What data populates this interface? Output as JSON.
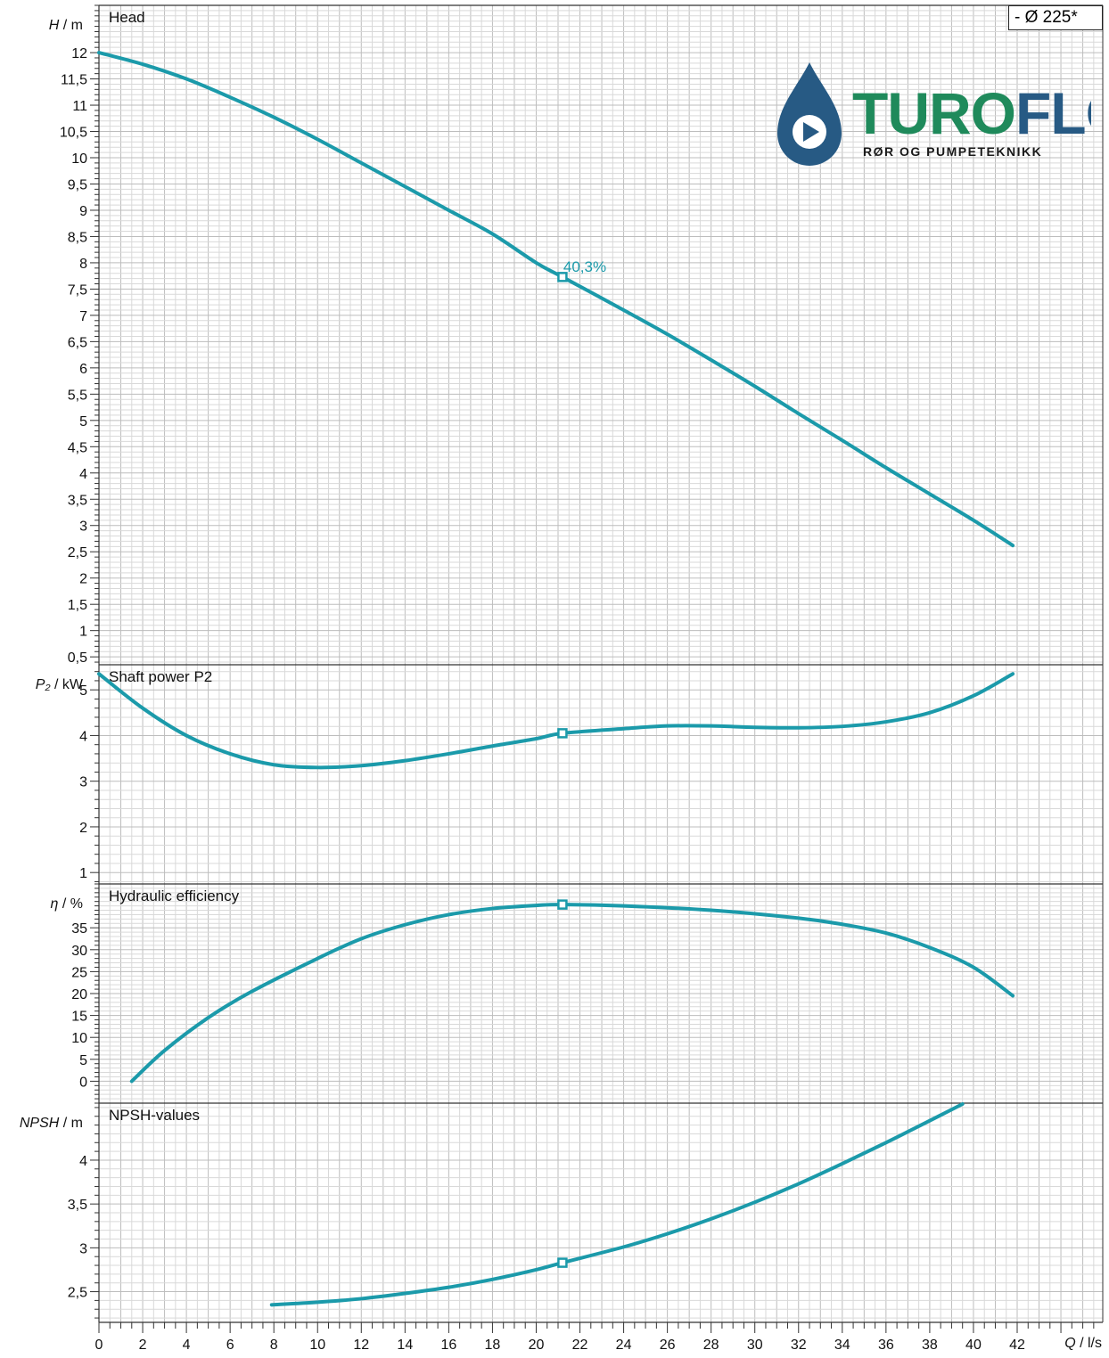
{
  "colors": {
    "curve": "#1b9aaa",
    "grid_minor": "#d9d9d9",
    "grid_major": "#bdbdbd",
    "axis": "#333333",
    "logo_drop": "#275a84",
    "logo_turo": "#1f8a5b",
    "logo_flow": "#275a84"
  },
  "legend": {
    "label": "- Ø 225*"
  },
  "logo": {
    "brand_part1": "TURO",
    "brand_part2": "FLOW",
    "tagline": "RØR OG PUMPETEKNIKK",
    "icon": "play-drop-icon"
  },
  "x_axis": {
    "label_var": "Q",
    "label_unit": "l/s",
    "ticks": [
      "0",
      "2",
      "4",
      "6",
      "8",
      "10",
      "12",
      "14",
      "16",
      "18",
      "20",
      "22",
      "24",
      "26",
      "28",
      "30",
      "32",
      "34",
      "36",
      "38",
      "40",
      "42"
    ]
  },
  "chart_data": [
    {
      "type": "line",
      "title": "Head",
      "ylabel_var": "H",
      "ylabel_unit": "m",
      "ylim": [
        0.35,
        12.9
      ],
      "yticks": [
        {
          "v": 0.5,
          "t": "0,5"
        },
        {
          "v": 1,
          "t": "1"
        },
        {
          "v": 1.5,
          "t": "1,5"
        },
        {
          "v": 2,
          "t": "2"
        },
        {
          "v": 2.5,
          "t": "2,5"
        },
        {
          "v": 3,
          "t": "3"
        },
        {
          "v": 3.5,
          "t": "3,5"
        },
        {
          "v": 4,
          "t": "4"
        },
        {
          "v": 4.5,
          "t": "4,5"
        },
        {
          "v": 5,
          "t": "5"
        },
        {
          "v": 5.5,
          "t": "5,5"
        },
        {
          "v": 6,
          "t": "6"
        },
        {
          "v": 6.5,
          "t": "6,5"
        },
        {
          "v": 7,
          "t": "7"
        },
        {
          "v": 7.5,
          "t": "7,5"
        },
        {
          "v": 8,
          "t": "8"
        },
        {
          "v": 8.5,
          "t": "8,5"
        },
        {
          "v": 9,
          "t": "9"
        },
        {
          "v": 9.5,
          "t": "9,5"
        },
        {
          "v": 10,
          "t": "10"
        },
        {
          "v": 10.5,
          "t": "10,5"
        },
        {
          "v": 11,
          "t": "11"
        },
        {
          "v": 11.5,
          "t": "11,5"
        },
        {
          "v": 12,
          "t": "12"
        }
      ],
      "minor_step": 0.1,
      "series": [
        {
          "x": [
            0,
            2,
            4,
            6,
            8,
            10,
            12,
            14,
            16,
            18,
            20,
            21.2,
            24,
            26,
            28,
            30,
            32,
            34,
            36,
            38,
            40,
            41.8
          ],
          "y": [
            12.0,
            11.78,
            11.5,
            11.15,
            10.77,
            10.35,
            9.9,
            9.45,
            9.0,
            8.55,
            8.0,
            7.73,
            7.1,
            6.64,
            6.15,
            5.65,
            5.13,
            4.62,
            4.1,
            3.6,
            3.1,
            2.62
          ]
        }
      ],
      "marker": {
        "x": 21.2,
        "y": 7.73
      },
      "annotation": {
        "x": 21.2,
        "y": 7.73,
        "text": "40,3%"
      }
    },
    {
      "type": "line",
      "title": "Shaft power P2",
      "ylabel_var": "P₂",
      "ylabel_unit": "kW",
      "ylim": [
        0.75,
        5.55
      ],
      "yticks": [
        {
          "v": 1,
          "t": "1"
        },
        {
          "v": 2,
          "t": "2"
        },
        {
          "v": 3,
          "t": "3"
        },
        {
          "v": 4,
          "t": "4"
        },
        {
          "v": 5,
          "t": "5"
        }
      ],
      "minor_step": 0.2,
      "series": [
        {
          "x": [
            0,
            2,
            4,
            6,
            8,
            10,
            12,
            14,
            16,
            18,
            20,
            21.2,
            24,
            26,
            28,
            30,
            32,
            34,
            36,
            38,
            40,
            41.8
          ],
          "y": [
            5.35,
            4.6,
            4.0,
            3.6,
            3.36,
            3.3,
            3.34,
            3.45,
            3.6,
            3.77,
            3.93,
            4.05,
            4.15,
            4.21,
            4.21,
            4.18,
            4.17,
            4.2,
            4.3,
            4.5,
            4.87,
            5.35
          ]
        }
      ],
      "marker": {
        "x": 21.2,
        "y": 4.05
      }
    },
    {
      "type": "line",
      "title": "Hydraulic efficiency",
      "ylabel_var": "η",
      "ylabel_unit": "%",
      "ylim": [
        -5,
        45
      ],
      "yticks": [
        {
          "v": 0,
          "t": "0"
        },
        {
          "v": 5,
          "t": "5"
        },
        {
          "v": 10,
          "t": "10"
        },
        {
          "v": 15,
          "t": "15"
        },
        {
          "v": 20,
          "t": "20"
        },
        {
          "v": 25,
          "t": "25"
        },
        {
          "v": 30,
          "t": "30"
        },
        {
          "v": 35,
          "t": "35"
        }
      ],
      "minor_step": 1,
      "series": [
        {
          "x": [
            1.5,
            3,
            5,
            7,
            10,
            12,
            14,
            16,
            18,
            20,
            21.2,
            24,
            28,
            32,
            34,
            36,
            38,
            40,
            41.8
          ],
          "y": [
            0,
            7.0,
            14.5,
            20.5,
            28.0,
            32.5,
            35.7,
            38.0,
            39.4,
            40.1,
            40.3,
            40.0,
            39.0,
            37.2,
            35.8,
            33.8,
            30.5,
            26.0,
            19.5
          ]
        }
      ],
      "marker": {
        "x": 21.2,
        "y": 40.3
      }
    },
    {
      "type": "line",
      "title": "NPSH-values",
      "ylabel_var": "NPSH",
      "ylabel_unit": "m",
      "ylim": [
        2.15,
        4.65
      ],
      "yticks": [
        {
          "v": 2.5,
          "t": "2,5"
        },
        {
          "v": 3,
          "t": "3"
        },
        {
          "v": 3.5,
          "t": "3,5"
        },
        {
          "v": 4,
          "t": "4"
        }
      ],
      "minor_step": 0.1,
      "series": [
        {
          "x": [
            7.9,
            10,
            12,
            14,
            16,
            18,
            20,
            21.2,
            24,
            26,
            28,
            30,
            32,
            34,
            36,
            38,
            39.5
          ],
          "y": [
            2.35,
            2.38,
            2.42,
            2.48,
            2.55,
            2.64,
            2.75,
            2.83,
            3.01,
            3.16,
            3.33,
            3.52,
            3.73,
            3.96,
            4.2,
            4.45,
            4.64
          ]
        }
      ],
      "marker": {
        "x": 21.2,
        "y": 2.83
      }
    }
  ]
}
